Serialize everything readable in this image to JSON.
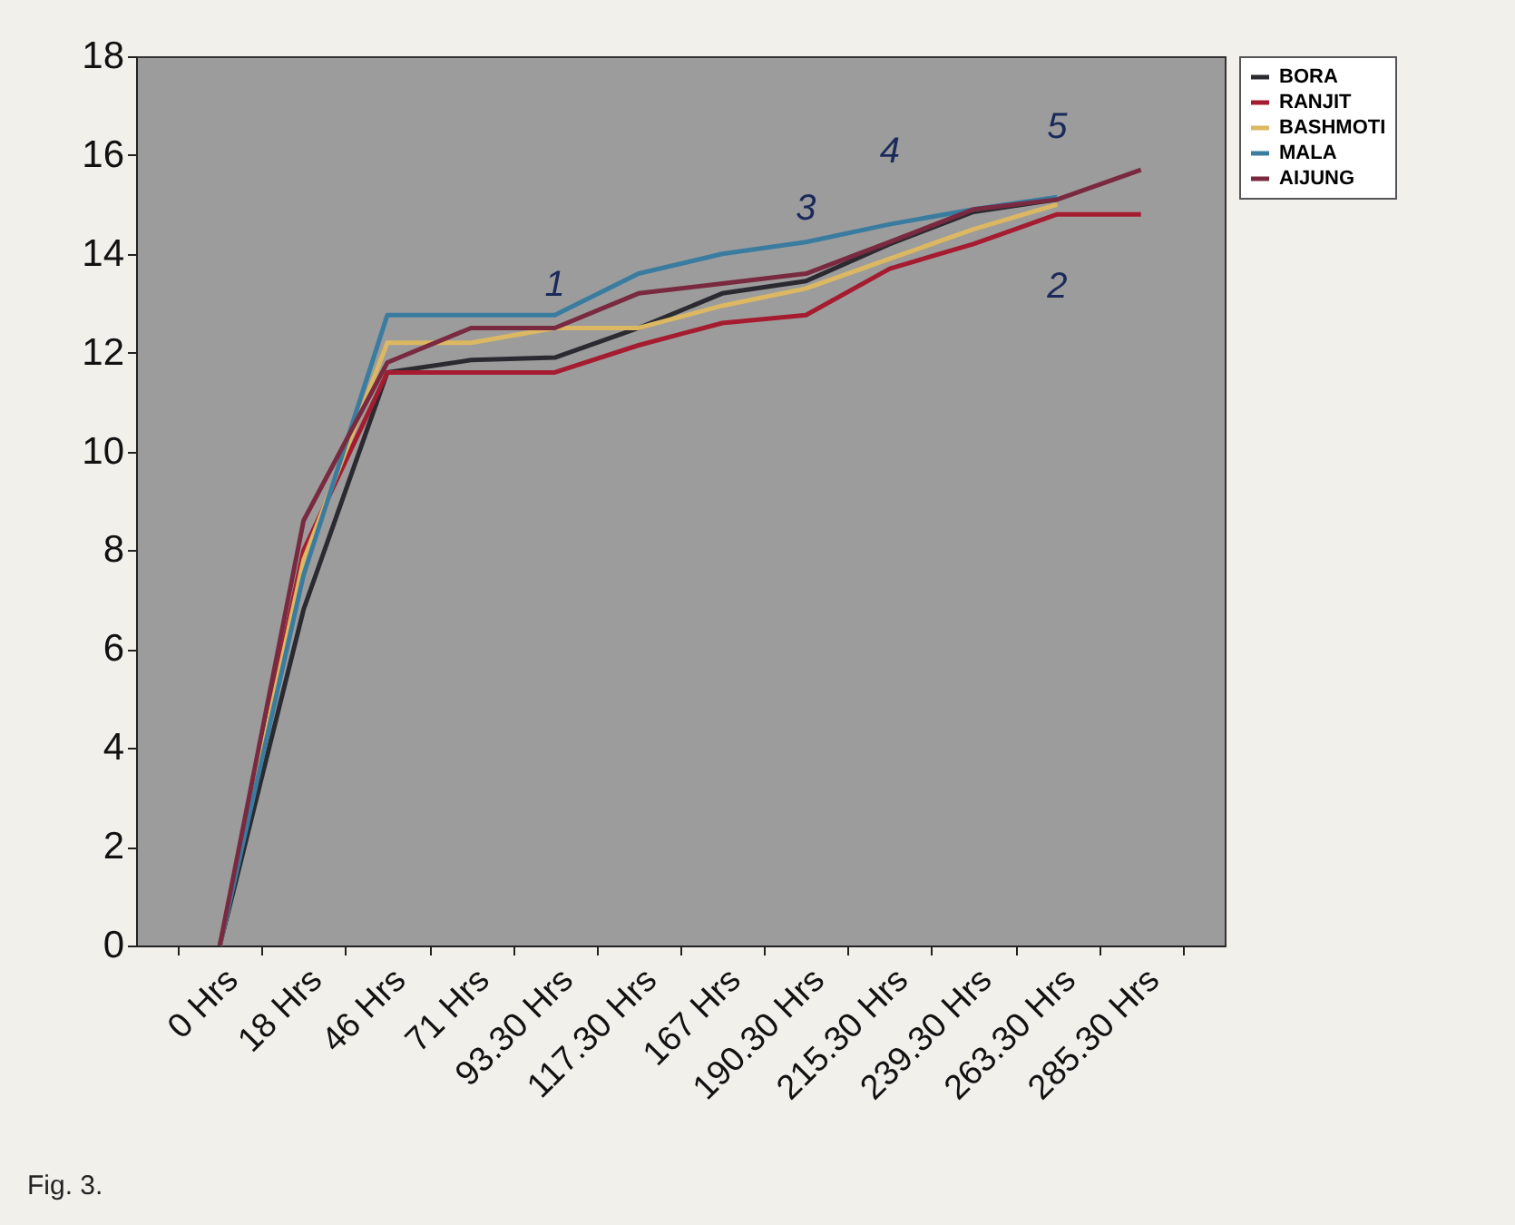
{
  "chart_data": {
    "type": "line",
    "categories": [
      "0 Hrs",
      "18 Hrs",
      "46 Hrs",
      "71 Hrs",
      "93.30 Hrs",
      "117.30 Hrs",
      "167 Hrs",
      "190.30 Hrs",
      "215.30 Hrs",
      "239.30 Hrs",
      "263.30 Hrs",
      "285.30 Hrs"
    ],
    "series": [
      {
        "name": "BORA",
        "color": "#2a2a30",
        "values": [
          0,
          6.8,
          11.6,
          11.85,
          11.9,
          12.5,
          13.2,
          13.45,
          14.2,
          14.85,
          15.1,
          null
        ]
      },
      {
        "name": "RANJIT",
        "color": "#a51c30",
        "values": [
          0,
          8.0,
          11.6,
          11.6,
          11.6,
          12.15,
          12.6,
          12.76,
          13.7,
          14.2,
          14.8,
          14.8
        ]
      },
      {
        "name": "BASHMOTI",
        "color": "#dcb862",
        "values": [
          0,
          7.8,
          12.2,
          12.2,
          12.5,
          12.5,
          12.95,
          13.3,
          13.9,
          14.5,
          15.0,
          null
        ]
      },
      {
        "name": "MALA",
        "color": "#3a7ca0",
        "values": [
          0,
          7.5,
          12.76,
          12.76,
          12.76,
          13.6,
          14.0,
          14.24,
          14.6,
          14.9,
          15.15,
          null
        ]
      },
      {
        "name": "AIJUNG",
        "color": "#7a2a40",
        "values": [
          0,
          8.6,
          11.8,
          12.5,
          12.5,
          13.2,
          13.4,
          13.6,
          14.24,
          14.9,
          15.1,
          15.7
        ]
      }
    ],
    "ylim": [
      0,
      18
    ],
    "yticks": [
      0,
      2,
      4,
      6,
      8,
      10,
      12,
      14,
      16,
      18
    ],
    "grid": false,
    "legend": "right",
    "marker": "none",
    "line_style": "solid",
    "annotations": [
      {
        "text": "1",
        "x": "93.30 Hrs",
        "y": 11.9
      },
      {
        "text": "3",
        "x": "190.30 Hrs",
        "y": 13.45
      },
      {
        "text": "4",
        "x": "215.30 Hrs",
        "y": 14.6
      },
      {
        "text": "5",
        "x": "263.30 Hrs",
        "y": 15.1
      },
      {
        "text": "2",
        "x": "263.30 Hrs",
        "y": 14.8
      },
      "Fig. 3."
    ]
  }
}
